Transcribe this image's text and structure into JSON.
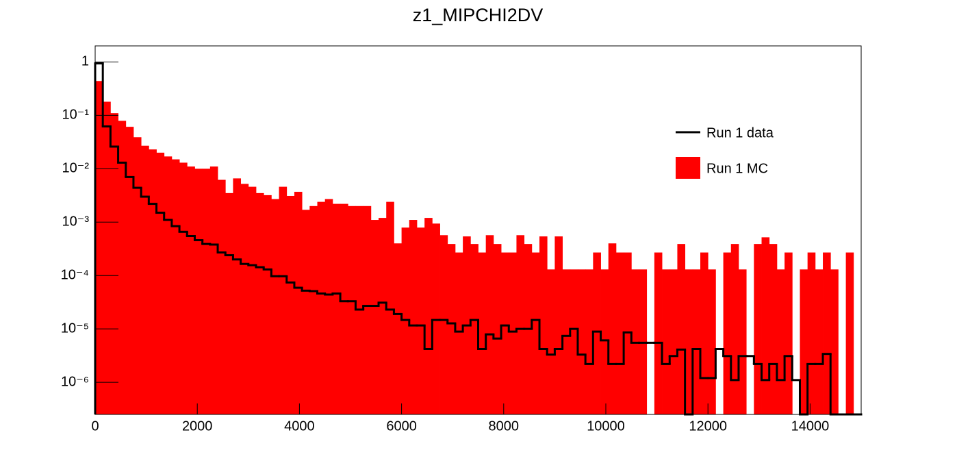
{
  "chart_data": {
    "type": "histogram",
    "title": "z1_MIPCHI2DV",
    "bins": [
      0,
      150,
      300,
      450,
      600,
      750,
      900,
      1050,
      1200,
      1350,
      1500,
      1650,
      1800,
      1950,
      2100,
      2250,
      2400,
      2550,
      2700,
      2850,
      3000,
      3150,
      3300,
      3450,
      3600,
      3750,
      3900,
      4050,
      4200,
      4350,
      4500,
      4650,
      4800,
      4950,
      5100,
      5250,
      5400,
      5550,
      5700,
      5850,
      6000,
      6150,
      6300,
      6450,
      6600,
      6750,
      6900,
      7050,
      7200,
      7350,
      7500,
      7650,
      7800,
      7950,
      8100,
      8250,
      8400,
      8550,
      8700,
      8850,
      9000,
      9150,
      9300,
      9450,
      9600,
      9750,
      9900,
      10050,
      10200,
      10350,
      10500,
      10650,
      10800,
      10950,
      11100,
      11250,
      11400,
      11550,
      11700,
      11850,
      12000,
      12150,
      12300,
      12450,
      12600,
      12750,
      12900,
      13050,
      13200,
      13350,
      13500,
      13650,
      13800,
      13950,
      14100,
      14250,
      14400,
      14550,
      14700,
      14850,
      15000
    ],
    "series": [
      {
        "name": "Run 1 MC",
        "color": "#ff0000",
        "style": "fill",
        "values": [
          0.44,
          0.18,
          0.11,
          0.079,
          0.061,
          0.039,
          0.027,
          0.023,
          0.02,
          0.017,
          0.015,
          0.013,
          0.011,
          0.01,
          0.01,
          0.011,
          0.0062,
          0.0035,
          0.0066,
          0.0052,
          0.0046,
          0.0035,
          0.0032,
          0.0027,
          0.0046,
          0.0031,
          0.0037,
          0.0017,
          0.002,
          0.0024,
          0.0027,
          0.0022,
          0.0022,
          0.002,
          0.002,
          0.002,
          0.0011,
          0.0012,
          0.0024,
          0.0004,
          0.00079,
          0.0011,
          0.00079,
          0.0012,
          0.00094,
          0.00057,
          0.00039,
          0.00027,
          0.00054,
          0.00039,
          0.00027,
          0.00057,
          0.00039,
          0.00027,
          0.00027,
          0.00057,
          0.00039,
          0.00027,
          0.00054,
          0.00013,
          0.00054,
          0.00013,
          0.00013,
          0.00013,
          0.00013,
          0.00027,
          0.00013,
          0.0004,
          0.00027,
          0.00027,
          0.00013,
          0.00013,
          0,
          0.00027,
          0.00013,
          0.00013,
          0.00039,
          0.00013,
          0.00013,
          0.00027,
          0.00013,
          0,
          0.00027,
          0.00039,
          0.00013,
          0,
          0.00039,
          0.00052,
          0.00039,
          0.00013,
          0.00027,
          0,
          0.00013,
          0.00027,
          0.00013,
          0.00027,
          0.00013,
          0,
          0.00027,
          0
        ]
      },
      {
        "name": "Run 1 data",
        "color": "#000000",
        "style": "step",
        "values": [
          0.94,
          0.062,
          0.026,
          0.013,
          0.007,
          0.0044,
          0.003,
          0.0022,
          0.0015,
          0.0011,
          0.00084,
          0.00066,
          0.00055,
          0.00046,
          0.00039,
          0.00038,
          0.00027,
          0.00024,
          0.0002,
          0.000165,
          0.000156,
          0.000143,
          0.00013,
          9.7e-05,
          9.7e-05,
          7.4e-05,
          5.9e-05,
          5.2e-05,
          5.1e-05,
          4.6e-05,
          4.4e-05,
          4.6e-05,
          3.3e-05,
          3.3e-05,
          2.3e-05,
          2.7e-05,
          2.7e-05,
          3.1e-05,
          2.3e-05,
          1.9e-05,
          1.47e-05,
          1.16e-05,
          1.16e-05,
          4.2e-06,
          1.47e-05,
          1.47e-05,
          1.27e-05,
          8.9e-06,
          1.16e-05,
          1.47e-05,
          4.2e-06,
          7.9e-06,
          6.6e-06,
          1.16e-05,
          8.9e-06,
          1e-05,
          1e-05,
          1.47e-05,
          4.2e-06,
          3.3e-06,
          4.2e-06,
          7.4e-06,
          1e-05,
          3.3e-06,
          2.2e-06,
          8.9e-06,
          6.1e-06,
          2.2e-06,
          2.2e-06,
          8.6e-06,
          5.5e-06,
          5.5e-06,
          5.5e-06,
          5.5e-06,
          2.2e-06,
          3.1e-06,
          4.1e-06,
          0,
          4.2e-06,
          1.2e-06,
          1.2e-06,
          4.2e-06,
          3.1e-06,
          1.1e-06,
          3.1e-06,
          3.1e-06,
          2.2e-06,
          1.1e-06,
          2.2e-06,
          1.1e-06,
          3.1e-06,
          1.1e-06,
          0,
          2.2e-06,
          2.2e-06,
          3.4e-06,
          0,
          0,
          0,
          0
        ]
      }
    ],
    "xlim": [
      0,
      15000
    ],
    "xticks": [
      0,
      2000,
      4000,
      6000,
      8000,
      10000,
      12000,
      14000
    ],
    "ylim": [
      2.5e-07,
      2
    ],
    "ylog": true,
    "yticks": [
      {
        "value": 1e-06,
        "label": "10⁻⁶"
      },
      {
        "value": 1e-05,
        "label": "10⁻⁵"
      },
      {
        "value": 0.0001,
        "label": "10⁻⁴"
      },
      {
        "value": 0.001,
        "label": "10⁻³"
      },
      {
        "value": 0.01,
        "label": "10⁻²"
      },
      {
        "value": 0.1,
        "label": "10⁻¹"
      },
      1
    ],
    "legend": "upper right"
  }
}
